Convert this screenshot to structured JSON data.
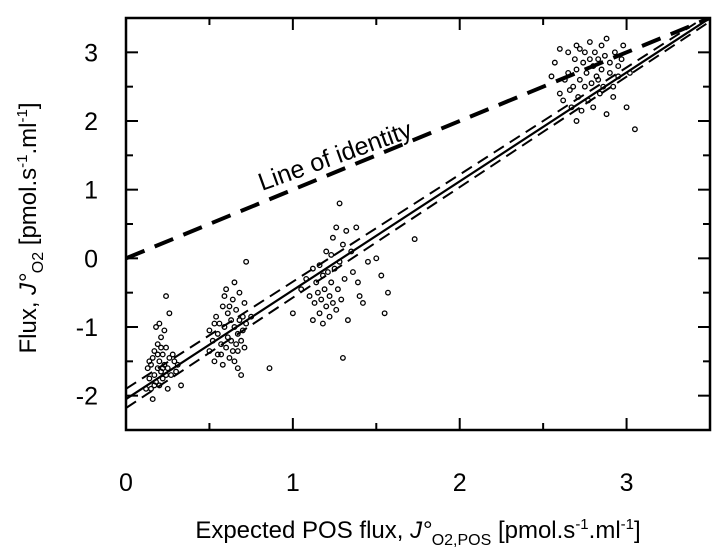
{
  "chart_data": {
    "type": "scatter",
    "xlim": [
      0,
      3.5
    ],
    "ylim": [
      -2.5,
      3.5
    ],
    "x_ticks": [
      "0",
      "1",
      "2",
      "3"
    ],
    "y_ticks": [
      "-2",
      "-1",
      "0",
      "1",
      "2",
      "3"
    ],
    "xlabel": {
      "main": "Expected POS flux, ",
      "symbol": "J°",
      "symbol_sub": "O2,POS",
      "unit_a": " [pmol.s",
      "sup_a": "-1",
      "unit_b": ".ml",
      "sup_b": "-1",
      "unit_c": "]"
    },
    "ylabel": {
      "main": "Flux, ",
      "symbol": "J°",
      "symbol_sub": "O2",
      "unit_a": " [pmol.s",
      "sup_a": "-1",
      "unit_b": ".ml",
      "sup_b": "-1",
      "unit_c": "]"
    },
    "annotation": "Line of identity",
    "grid": false,
    "lines": [
      {
        "role": "identity",
        "style": "dashed-thick",
        "points": [
          [
            0,
            0
          ],
          [
            3.5,
            3.5
          ]
        ]
      },
      {
        "role": "regression",
        "style": "solid",
        "points": [
          [
            0,
            -2.05
          ],
          [
            3.5,
            3.5
          ]
        ]
      },
      {
        "role": "confidence-upper",
        "style": "dashed",
        "points": [
          [
            0,
            -1.9
          ],
          [
            3.5,
            3.56
          ]
        ]
      },
      {
        "role": "confidence-lower",
        "style": "dashed",
        "points": [
          [
            0,
            -2.18
          ],
          [
            3.5,
            3.45
          ]
        ]
      }
    ],
    "points": [
      [
        0.13,
        -1.6
      ],
      [
        0.14,
        -1.75
      ],
      [
        0.15,
        -1.9
      ],
      [
        0.15,
        -1.55
      ],
      [
        0.16,
        -2.05
      ],
      [
        0.16,
        -1.45
      ],
      [
        0.17,
        -1.35
      ],
      [
        0.17,
        -1.7
      ],
      [
        0.18,
        -1.8
      ],
      [
        0.18,
        -1.0
      ],
      [
        0.19,
        -1.25
      ],
      [
        0.19,
        -1.6
      ],
      [
        0.2,
        -0.95
      ],
      [
        0.2,
        -1.5
      ],
      [
        0.2,
        -1.85
      ],
      [
        0.21,
        -1.15
      ],
      [
        0.21,
        -1.65
      ],
      [
        0.22,
        -1.4
      ],
      [
        0.22,
        -1.75
      ],
      [
        0.23,
        -1.05
      ],
      [
        0.23,
        -1.55
      ],
      [
        0.24,
        -1.3
      ],
      [
        0.24,
        -0.55
      ],
      [
        0.25,
        -1.6
      ],
      [
        0.25,
        -1.9
      ],
      [
        0.26,
        -1.45
      ],
      [
        0.26,
        -0.8
      ],
      [
        0.27,
        -1.7
      ],
      [
        0.28,
        -1.4
      ],
      [
        0.29,
        -1.5
      ],
      [
        0.3,
        -1.65
      ],
      [
        0.31,
        -1.55
      ],
      [
        0.33,
        -1.85
      ],
      [
        0.12,
        -1.9
      ],
      [
        0.14,
        -1.5
      ],
      [
        0.22,
        -1.6
      ],
      [
        0.17,
        -1.85
      ],
      [
        0.19,
        -1.4
      ],
      [
        0.21,
        -1.3
      ],
      [
        0.24,
        -1.7
      ],
      [
        0.5,
        -1.05
      ],
      [
        0.5,
        -1.35
      ],
      [
        0.52,
        -1.2
      ],
      [
        0.53,
        -1.5
      ],
      [
        0.54,
        -0.85
      ],
      [
        0.55,
        -1.1
      ],
      [
        0.55,
        -1.4
      ],
      [
        0.56,
        -0.95
      ],
      [
        0.57,
        -1.25
      ],
      [
        0.58,
        -0.7
      ],
      [
        0.58,
        -1.55
      ],
      [
        0.59,
        -1.0
      ],
      [
        0.6,
        -1.3
      ],
      [
        0.6,
        -0.45
      ],
      [
        0.61,
        -0.8
      ],
      [
        0.61,
        -1.15
      ],
      [
        0.62,
        -1.45
      ],
      [
        0.63,
        -0.9
      ],
      [
        0.63,
        -1.2
      ],
      [
        0.64,
        -0.6
      ],
      [
        0.64,
        -1.35
      ],
      [
        0.65,
        -1.0
      ],
      [
        0.65,
        -0.35
      ],
      [
        0.66,
        -1.25
      ],
      [
        0.66,
        -0.75
      ],
      [
        0.67,
        -1.1
      ],
      [
        0.67,
        -1.6
      ],
      [
        0.68,
        -0.9
      ],
      [
        0.68,
        -0.5
      ],
      [
        0.69,
        -1.2
      ],
      [
        0.69,
        -1.7
      ],
      [
        0.7,
        -0.85
      ],
      [
        0.7,
        -1.05
      ],
      [
        0.71,
        -0.65
      ],
      [
        0.72,
        -0.95
      ],
      [
        0.72,
        -0.05
      ],
      [
        0.75,
        -0.85
      ],
      [
        0.53,
        -0.95
      ],
      [
        0.57,
        -1.4
      ],
      [
        0.62,
        -0.7
      ],
      [
        0.67,
        -1.35
      ],
      [
        0.71,
        -1.3
      ],
      [
        0.59,
        -0.55
      ],
      [
        0.65,
        -1.5
      ],
      [
        0.86,
        -1.6
      ],
      [
        1.0,
        -0.8
      ],
      [
        1.05,
        -0.45
      ],
      [
        1.08,
        -0.3
      ],
      [
        1.1,
        -0.55
      ],
      [
        1.12,
        -0.9
      ],
      [
        1.12,
        -0.15
      ],
      [
        1.13,
        -0.65
      ],
      [
        1.14,
        -0.35
      ],
      [
        1.15,
        -0.5
      ],
      [
        1.16,
        -0.8
      ],
      [
        1.16,
        -0.1
      ],
      [
        1.17,
        -0.6
      ],
      [
        1.18,
        -0.25
      ],
      [
        1.18,
        -0.95
      ],
      [
        1.19,
        -0.45
      ],
      [
        1.2,
        0.1
      ],
      [
        1.2,
        -0.7
      ],
      [
        1.21,
        -0.2
      ],
      [
        1.22,
        -0.55
      ],
      [
        1.22,
        -0.85
      ],
      [
        1.23,
        0.05
      ],
      [
        1.23,
        -0.35
      ],
      [
        1.24,
        -0.65
      ],
      [
        1.24,
        0.3
      ],
      [
        1.25,
        -0.15
      ],
      [
        1.26,
        -0.75
      ],
      [
        1.26,
        0.45
      ],
      [
        1.27,
        -0.45
      ],
      [
        1.28,
        -0.05
      ],
      [
        1.28,
        0.8
      ],
      [
        1.29,
        -0.6
      ],
      [
        1.3,
        0.2
      ],
      [
        1.3,
        -1.45
      ],
      [
        1.31,
        -0.3
      ],
      [
        1.32,
        0.4
      ],
      [
        1.33,
        -0.9
      ],
      [
        1.35,
        0.1
      ],
      [
        1.36,
        -0.2
      ],
      [
        1.38,
        0.45
      ],
      [
        1.39,
        -0.35
      ],
      [
        1.4,
        -0.55
      ],
      [
        1.42,
        -0.65
      ],
      [
        1.45,
        -0.05
      ],
      [
        1.5,
        0.0
      ],
      [
        1.53,
        -0.25
      ],
      [
        1.55,
        -0.8
      ],
      [
        1.57,
        -0.5
      ],
      [
        1.73,
        0.28
      ],
      [
        2.55,
        2.65
      ],
      [
        2.57,
        2.85
      ],
      [
        2.6,
        2.4
      ],
      [
        2.62,
        2.3
      ],
      [
        2.63,
        2.6
      ],
      [
        2.65,
        2.7
      ],
      [
        2.65,
        3.0
      ],
      [
        2.67,
        2.2
      ],
      [
        2.68,
        2.5
      ],
      [
        2.69,
        2.9
      ],
      [
        2.7,
        2.75
      ],
      [
        2.7,
        3.1
      ],
      [
        2.71,
        2.35
      ],
      [
        2.72,
        2.6
      ],
      [
        2.73,
        2.15
      ],
      [
        2.74,
        2.85
      ],
      [
        2.75,
        2.5
      ],
      [
        2.75,
        3.0
      ],
      [
        2.76,
        2.7
      ],
      [
        2.77,
        2.3
      ],
      [
        2.78,
        2.9
      ],
      [
        2.78,
        3.15
      ],
      [
        2.79,
        2.55
      ],
      [
        2.8,
        2.8
      ],
      [
        2.8,
        2.2
      ],
      [
        2.81,
        3.0
      ],
      [
        2.82,
        2.65
      ],
      [
        2.83,
        2.9
      ],
      [
        2.84,
        2.4
      ],
      [
        2.85,
        3.1
      ],
      [
        2.85,
        2.75
      ],
      [
        2.86,
        2.5
      ],
      [
        2.87,
        2.95
      ],
      [
        2.88,
        2.1
      ],
      [
        2.88,
        3.2
      ],
      [
        2.9,
        2.7
      ],
      [
        2.9,
        2.85
      ],
      [
        2.92,
        2.5
      ],
      [
        2.93,
        3.0
      ],
      [
        2.95,
        2.8
      ],
      [
        2.95,
        2.65
      ],
      [
        2.97,
        2.9
      ],
      [
        2.98,
        3.1
      ],
      [
        3.0,
        2.2
      ],
      [
        3.02,
        2.7
      ],
      [
        3.05,
        1.88
      ],
      [
        2.6,
        3.05
      ],
      [
        2.66,
        2.45
      ],
      [
        2.72,
        3.05
      ],
      [
        2.83,
        2.6
      ],
      [
        2.92,
        2.35
      ],
      [
        2.7,
        2.0
      ]
    ]
  }
}
